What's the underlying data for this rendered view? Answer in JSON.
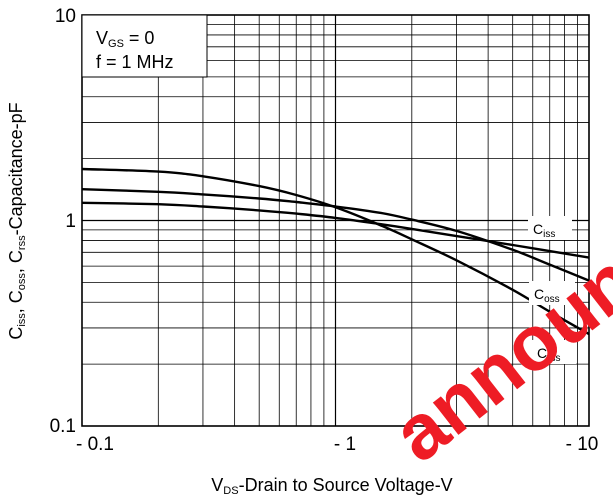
{
  "chart_data": {
    "type": "line",
    "x_scale": "log",
    "y_scale": "log",
    "xlim": [
      -0.1,
      -10
    ],
    "ylim": [
      0.1,
      10
    ],
    "x_ticks": [
      "- 0.1",
      "- 1",
      "- 10"
    ],
    "y_ticks": [
      "10",
      "1",
      "0.1"
    ],
    "grid": true,
    "xlabel": {
      "main": "V",
      "sub": "DS",
      "rest": "-Drain to Source Voltage-V"
    },
    "ylabel": {
      "parts": [
        {
          "t": "C",
          "s": "iss"
        },
        {
          "t": ", C",
          "s": "oss"
        },
        {
          "t": ", C",
          "s": "rss"
        }
      ],
      "rest": "-Capacitance-pF"
    },
    "conditions": {
      "line1": {
        "main": "V",
        "sub": "GS",
        "rest": " = 0"
      },
      "line2": "f = 1 MHz"
    },
    "series": [
      {
        "name": "Ciss",
        "label_main": "C",
        "label_sub": "iss",
        "x": [
          -0.1,
          -0.2,
          -0.3,
          -0.5,
          -0.7,
          -1,
          -1.5,
          -2,
          -3,
          -5,
          -7,
          -10
        ],
        "y": [
          1.22,
          1.2,
          1.17,
          1.12,
          1.08,
          1.03,
          0.96,
          0.91,
          0.84,
          0.76,
          0.71,
          0.66
        ]
      },
      {
        "name": "Coss",
        "label_main": "C",
        "label_sub": "oss",
        "x": [
          -0.1,
          -0.2,
          -0.3,
          -0.5,
          -0.7,
          -1,
          -1.5,
          -2,
          -3,
          -5,
          -7,
          -10
        ],
        "y": [
          1.42,
          1.38,
          1.34,
          1.28,
          1.23,
          1.17,
          1.09,
          1.01,
          0.89,
          0.72,
          0.61,
          0.51
        ]
      },
      {
        "name": "Crss",
        "label_main": "C",
        "label_sub": "rss",
        "x": [
          -0.1,
          -0.2,
          -0.3,
          -0.5,
          -0.7,
          -1,
          -1.5,
          -2,
          -3,
          -5,
          -7,
          -10
        ],
        "y": [
          1.78,
          1.73,
          1.64,
          1.47,
          1.33,
          1.16,
          0.95,
          0.81,
          0.64,
          0.46,
          0.36,
          0.28
        ]
      }
    ],
    "watermark": "announ"
  }
}
